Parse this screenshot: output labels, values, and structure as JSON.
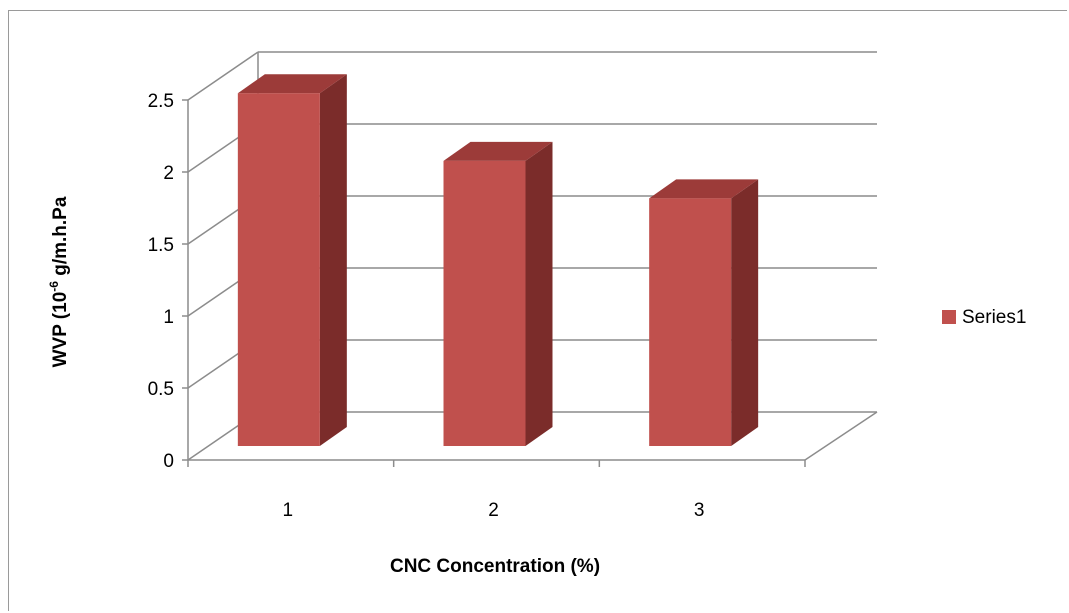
{
  "chart_data": {
    "type": "bar",
    "style": "3d-column",
    "categories": [
      "1",
      "2",
      "3"
    ],
    "series": [
      {
        "name": "Series1",
        "values": [
          2.45,
          1.98,
          1.72
        ],
        "color": "#c0504d"
      }
    ],
    "xlabel": "CNC Concentration (%)",
    "ylabel_prefix": "WVP (10",
    "ylabel_sup": "-6",
    "ylabel_suffix": " g/m.h.Pa",
    "yticks": [
      "0",
      "0.5",
      "1",
      "1.5",
      "2",
      "2.5"
    ],
    "ylim": [
      0,
      2.5
    ],
    "grid": true,
    "legend": "right"
  },
  "colors": {
    "bar_front": "#c0504d",
    "bar_side": "#7b2c2a",
    "bar_top": "#9c3b39",
    "grid": "#8c8c8c"
  }
}
